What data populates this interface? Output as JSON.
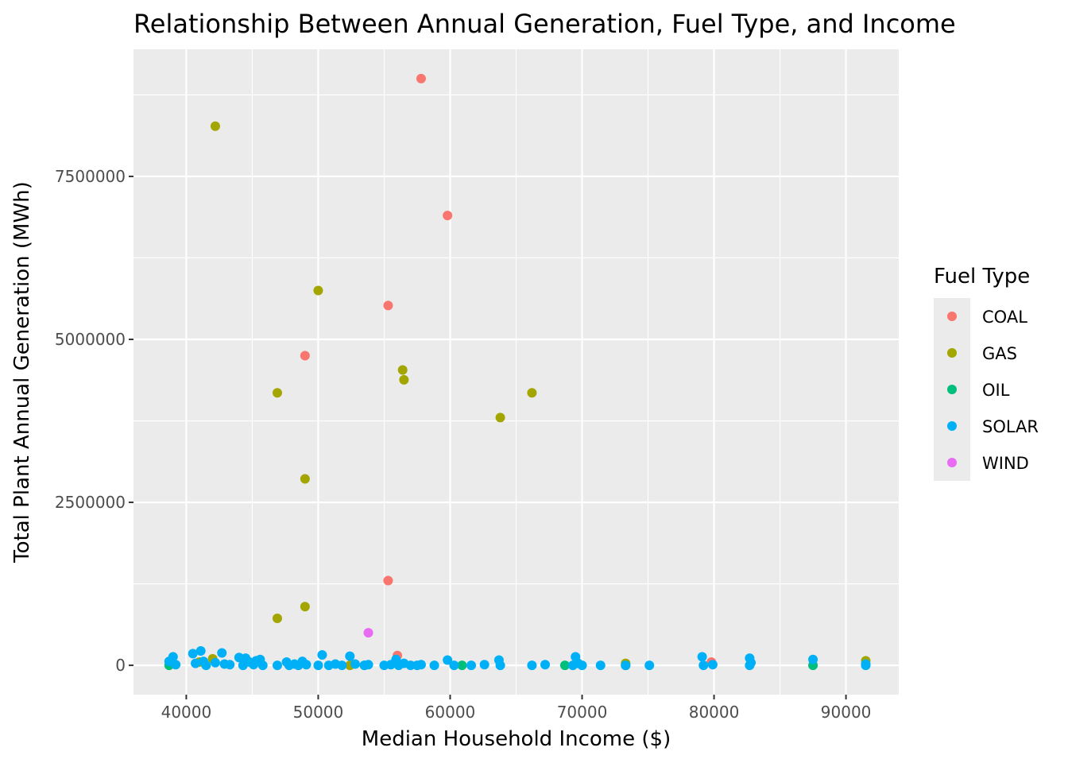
{
  "chart_data": {
    "type": "scatter",
    "title": "Relationship Between Annual Generation, Fuel Type, and Income",
    "xlabel": "Median Household Income ($)",
    "ylabel": "Total Plant Annual Generation (MWh)",
    "xlim": [
      36000,
      94000
    ],
    "ylim": [
      -450000,
      9450000
    ],
    "xticks": [
      40000,
      50000,
      60000,
      70000,
      80000,
      90000
    ],
    "xtick_labels": [
      "40000",
      "50000",
      "60000",
      "70000",
      "80000",
      "90000"
    ],
    "yticks": [
      0,
      2500000,
      5000000,
      7500000
    ],
    "ytick_labels": [
      "0",
      "2500000",
      "5000000",
      "7500000"
    ],
    "grid": true,
    "legend": {
      "title": "Fuel Type",
      "position": "right",
      "entries": [
        {
          "label": "COAL",
          "color": "#F8766D"
        },
        {
          "label": "GAS",
          "color": "#A3A500"
        },
        {
          "label": "OIL",
          "color": "#00BF7D"
        },
        {
          "label": "SOLAR",
          "color": "#00B0F6"
        },
        {
          "label": "WIND",
          "color": "#E76BF3"
        }
      ]
    },
    "series": [
      {
        "name": "COAL",
        "color": "#F8766D",
        "points": [
          [
            57800,
            9000000
          ],
          [
            59800,
            6900000
          ],
          [
            55300,
            5520000
          ],
          [
            49000,
            4750000
          ],
          [
            55300,
            1300000
          ],
          [
            56000,
            150000
          ],
          [
            79800,
            50000
          ]
        ]
      },
      {
        "name": "GAS",
        "color": "#A3A500",
        "points": [
          [
            42200,
            8270000
          ],
          [
            50000,
            5750000
          ],
          [
            56400,
            4530000
          ],
          [
            56500,
            4380000
          ],
          [
            46900,
            4180000
          ],
          [
            66200,
            4180000
          ],
          [
            63800,
            3800000
          ],
          [
            49000,
            2860000
          ],
          [
            49000,
            900000
          ],
          [
            46900,
            720000
          ],
          [
            42000,
            100000
          ],
          [
            52400,
            0
          ],
          [
            73300,
            30000
          ],
          [
            91500,
            70000
          ],
          [
            41000,
            50000
          ]
        ]
      },
      {
        "name": "OIL",
        "color": "#00BF7D",
        "points": [
          [
            38700,
            0
          ],
          [
            53500,
            0
          ],
          [
            60900,
            0
          ],
          [
            68700,
            0
          ],
          [
            87500,
            0
          ],
          [
            73300,
            0
          ]
        ]
      },
      {
        "name": "SOLAR",
        "color": "#00B0F6",
        "points": [
          [
            38700,
            60000
          ],
          [
            39000,
            130000
          ],
          [
            39200,
            10000
          ],
          [
            40500,
            180000
          ],
          [
            40700,
            30000
          ],
          [
            41100,
            220000
          ],
          [
            41300,
            60000
          ],
          [
            41500,
            0
          ],
          [
            42200,
            40000
          ],
          [
            42700,
            190000
          ],
          [
            42900,
            20000
          ],
          [
            43300,
            10000
          ],
          [
            44000,
            120000
          ],
          [
            44300,
            0
          ],
          [
            44500,
            110000
          ],
          [
            44800,
            50000
          ],
          [
            45100,
            10000
          ],
          [
            45300,
            70000
          ],
          [
            45600,
            90000
          ],
          [
            45800,
            0
          ],
          [
            46900,
            0
          ],
          [
            47600,
            50000
          ],
          [
            47800,
            0
          ],
          [
            48200,
            20000
          ],
          [
            48500,
            0
          ],
          [
            48800,
            60000
          ],
          [
            49100,
            10000
          ],
          [
            50000,
            0
          ],
          [
            50300,
            160000
          ],
          [
            50800,
            0
          ],
          [
            51300,
            20000
          ],
          [
            51800,
            0
          ],
          [
            52400,
            140000
          ],
          [
            52800,
            20000
          ],
          [
            53500,
            0
          ],
          [
            53800,
            10000
          ],
          [
            55000,
            0
          ],
          [
            55500,
            10000
          ],
          [
            55900,
            90000
          ],
          [
            56100,
            0
          ],
          [
            56500,
            30000
          ],
          [
            57000,
            0
          ],
          [
            57500,
            0
          ],
          [
            57800,
            10000
          ],
          [
            58800,
            0
          ],
          [
            59800,
            80000
          ],
          [
            60300,
            0
          ],
          [
            61600,
            0
          ],
          [
            62600,
            10000
          ],
          [
            63700,
            80000
          ],
          [
            63800,
            0
          ],
          [
            66200,
            0
          ],
          [
            67200,
            10000
          ],
          [
            69300,
            0
          ],
          [
            69500,
            130000
          ],
          [
            69700,
            30000
          ],
          [
            70000,
            0
          ],
          [
            71400,
            0
          ],
          [
            73300,
            0
          ],
          [
            75100,
            0
          ],
          [
            79100,
            130000
          ],
          [
            79200,
            0
          ],
          [
            79900,
            10000
          ],
          [
            82700,
            110000
          ],
          [
            82800,
            40000
          ],
          [
            82700,
            0
          ],
          [
            87500,
            90000
          ],
          [
            91500,
            20000
          ],
          [
            91500,
            0
          ]
        ]
      },
      {
        "name": "WIND",
        "color": "#E76BF3",
        "points": [
          [
            53800,
            500000
          ]
        ]
      }
    ]
  }
}
